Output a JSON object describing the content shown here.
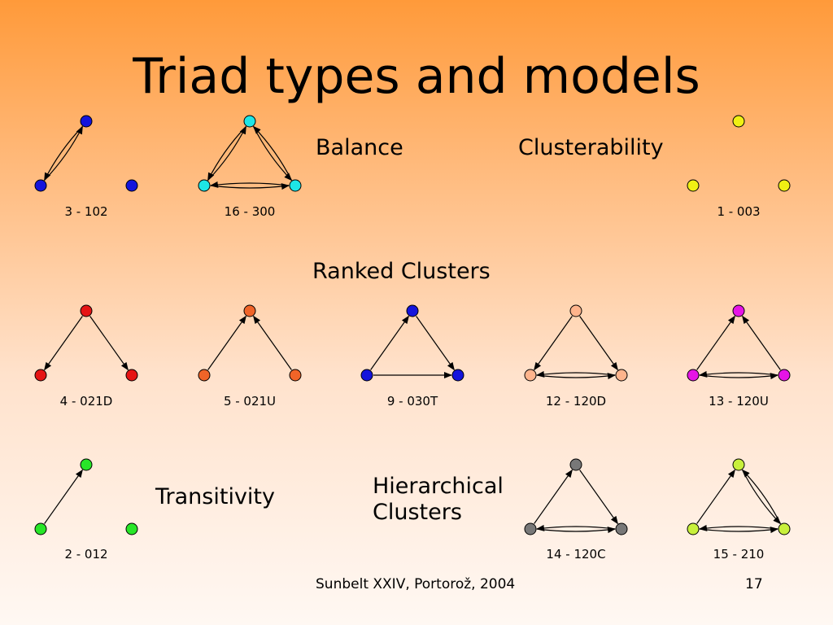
{
  "title": "Triad types and models",
  "groups": {
    "balance": "Balance",
    "clusterability": "Clusterability",
    "ranked_clusters": "Ranked Clusters",
    "transitivity": "Transitivity",
    "hierarchical_clusters_line1": "Hierarchical",
    "hierarchical_clusters_line2": "Clusters"
  },
  "triads": [
    {
      "id": "t102",
      "label": "3 - 102",
      "color": "#1414dc"
    },
    {
      "id": "t300",
      "label": "16 - 300",
      "color": "#1ee6e6"
    },
    {
      "id": "t003",
      "label": "1 - 003",
      "color": "#f0f014"
    },
    {
      "id": "t021D",
      "label": "4 - 021D",
      "color": "#e61414"
    },
    {
      "id": "t021U",
      "label": "5 - 021U",
      "color": "#f06428"
    },
    {
      "id": "t030T",
      "label": "9 - 030T",
      "color": "#1414dc"
    },
    {
      "id": "t120D",
      "label": "12 - 120D",
      "color": "#ffb48c"
    },
    {
      "id": "t120U",
      "label": "13 - 120U",
      "color": "#e614e6"
    },
    {
      "id": "t012",
      "label": "2 - 012",
      "color": "#28e628"
    },
    {
      "id": "t120C",
      "label": "14 - 120C",
      "color": "#787878"
    },
    {
      "id": "t210",
      "label": "15 - 210",
      "color": "#c8f03c"
    }
  ],
  "footer": "Sunbelt XXIV, Portorož, 2004",
  "page_number": "17"
}
